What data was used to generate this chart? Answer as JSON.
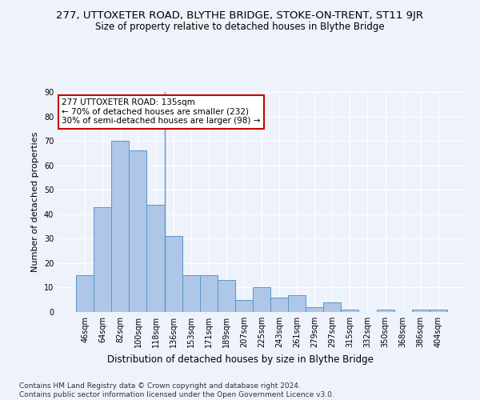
{
  "title": "277, UTTOXETER ROAD, BLYTHE BRIDGE, STOKE-ON-TRENT, ST11 9JR",
  "subtitle": "Size of property relative to detached houses in Blythe Bridge",
  "xlabel": "Distribution of detached houses by size in Blythe Bridge",
  "ylabel": "Number of detached properties",
  "footnote": "Contains HM Land Registry data © Crown copyright and database right 2024.\nContains public sector information licensed under the Open Government Licence v3.0.",
  "categories": [
    "46sqm",
    "64sqm",
    "82sqm",
    "100sqm",
    "118sqm",
    "136sqm",
    "153sqm",
    "171sqm",
    "189sqm",
    "207sqm",
    "225sqm",
    "243sqm",
    "261sqm",
    "279sqm",
    "297sqm",
    "315sqm",
    "332sqm",
    "350sqm",
    "368sqm",
    "386sqm",
    "404sqm"
  ],
  "values": [
    15,
    43,
    70,
    66,
    44,
    31,
    15,
    15,
    13,
    5,
    10,
    6,
    7,
    2,
    4,
    1,
    0,
    1,
    0,
    1,
    1
  ],
  "bar_color": "#aec6e8",
  "bar_edge_color": "#5a96c8",
  "vline_x": 4.5,
  "annotation_text": "277 UTTOXETER ROAD: 135sqm\n← 70% of detached houses are smaller (232)\n30% of semi-detached houses are larger (98) →",
  "annotation_box_color": "#ffffff",
  "annotation_box_edge": "#cc0000",
  "ylim": [
    0,
    90
  ],
  "yticks": [
    0,
    10,
    20,
    30,
    40,
    50,
    60,
    70,
    80,
    90
  ],
  "bg_color": "#eef2fb",
  "grid_color": "#ffffff",
  "title_fontsize": 9.5,
  "subtitle_fontsize": 8.5,
  "ylabel_fontsize": 8,
  "xlabel_fontsize": 8.5,
  "footnote_fontsize": 6.5,
  "tick_fontsize": 7,
  "annot_fontsize": 7.5
}
